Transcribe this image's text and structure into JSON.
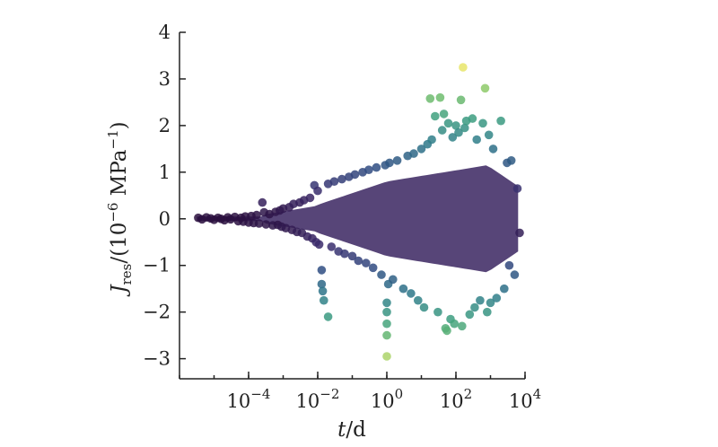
{
  "chart_data": {
    "type": "scatter",
    "title": "",
    "xlabel": {
      "italic": "t",
      "rest": "/d"
    },
    "ylabel": {
      "italic": "J",
      "sub": "res",
      "rest_a": "/(10",
      "sup1": "−6",
      "rest_b": " MPa",
      "sup2": "−1",
      "rest_c": ")"
    },
    "x_scale": "log",
    "xlim": [
      1e-06,
      10000
    ],
    "ylim": [
      -3.2,
      4
    ],
    "x_ticks": [
      {
        "base": "10",
        "exp": "−4",
        "value": 0.0001
      },
      {
        "base": "10",
        "exp": "−2",
        "value": 0.01
      },
      {
        "base": "10",
        "exp": "0",
        "value": 1
      },
      {
        "base": "10",
        "exp": "2",
        "value": 100
      },
      {
        "base": "10",
        "exp": "4",
        "value": 10000
      }
    ],
    "y_ticks": [
      {
        "label": "−3",
        "value": -3
      },
      {
        "label": "−2",
        "value": -2
      },
      {
        "label": "−1",
        "value": -1
      },
      {
        "label": "0",
        "value": 0
      },
      {
        "label": "1",
        "value": 1
      },
      {
        "label": "2",
        "value": 2
      },
      {
        "label": "3",
        "value": 3
      },
      {
        "label": "4",
        "value": 4
      }
    ],
    "grid": false,
    "legend": "none",
    "colormap": "viridis",
    "colormap_stops": [
      "#2a0f3e",
      "#3b2a6b",
      "#2f4d82",
      "#2e7a8a",
      "#3d9f80",
      "#7cc46a",
      "#e8e56a"
    ],
    "points": [
      [
        3.5e-06,
        0.02
      ],
      [
        4.5e-06,
        -0.01
      ],
      [
        6e-06,
        0.03
      ],
      [
        8e-06,
        0.01
      ],
      [
        1e-05,
        -0.02
      ],
      [
        1.3e-05,
        0.02
      ],
      [
        1.6e-05,
        0.0
      ],
      [
        2e-05,
        -0.03
      ],
      [
        2.5e-05,
        0.03
      ],
      [
        3e-05,
        -0.01
      ],
      [
        4e-05,
        0.04
      ],
      [
        5e-05,
        -0.05
      ],
      [
        6e-05,
        0.02
      ],
      [
        7e-05,
        -0.06
      ],
      [
        8e-05,
        0.05
      ],
      [
        0.0001,
        -0.08
      ],
      [
        0.00012,
        0.06
      ],
      [
        0.00014,
        -0.09
      ],
      [
        0.00017,
        0.08
      ],
      [
        0.0002,
        -0.1
      ],
      [
        0.00025,
        0.35
      ],
      [
        0.00028,
        0.14
      ],
      [
        0.00032,
        -0.12
      ],
      [
        0.0004,
        0.1
      ],
      [
        0.0005,
        -0.14
      ],
      [
        0.0006,
        0.15
      ],
      [
        0.0007,
        -0.13
      ],
      [
        0.0008,
        0.18
      ],
      [
        0.0009,
        -0.17
      ],
      [
        0.001,
        0.22
      ],
      [
        0.0012,
        -0.2
      ],
      [
        0.0015,
        0.25
      ],
      [
        0.0018,
        -0.24
      ],
      [
        0.002,
        0.32
      ],
      [
        0.0025,
        -0.28
      ],
      [
        0.003,
        0.35
      ],
      [
        0.0035,
        -0.3
      ],
      [
        0.004,
        0.4
      ],
      [
        0.005,
        -0.38
      ],
      [
        0.006,
        0.45
      ],
      [
        0.007,
        -0.42
      ],
      [
        0.008,
        0.72
      ],
      [
        0.009,
        -0.5
      ],
      [
        0.01,
        0.6
      ],
      [
        0.011,
        -0.55
      ],
      [
        0.013,
        -1.1
      ],
      [
        0.013,
        -1.4
      ],
      [
        0.014,
        -1.55
      ],
      [
        0.015,
        -1.75
      ],
      [
        0.02,
        -2.1
      ],
      [
        0.02,
        0.75
      ],
      [
        0.025,
        -0.6
      ],
      [
        0.03,
        0.8
      ],
      [
        0.04,
        -0.7
      ],
      [
        0.05,
        0.85
      ],
      [
        0.06,
        -0.75
      ],
      [
        0.08,
        0.9
      ],
      [
        0.1,
        -0.8
      ],
      [
        0.12,
        0.95
      ],
      [
        0.15,
        -0.9
      ],
      [
        0.2,
        1.0
      ],
      [
        0.25,
        -0.95
      ],
      [
        0.3,
        1.05
      ],
      [
        0.4,
        -1.05
      ],
      [
        0.5,
        1.1
      ],
      [
        0.7,
        -1.2
      ],
      [
        0.9,
        1.15
      ],
      [
        1.0,
        -1.8
      ],
      [
        1.0,
        -2.0
      ],
      [
        1.0,
        -2.25
      ],
      [
        1.0,
        -2.5
      ],
      [
        1.0,
        -2.95
      ],
      [
        1.1,
        -1.4
      ],
      [
        1.2,
        1.2
      ],
      [
        1.5,
        -1.3
      ],
      [
        2,
        1.25
      ],
      [
        3,
        -1.5
      ],
      [
        4,
        1.35
      ],
      [
        5,
        -1.6
      ],
      [
        6,
        1.4
      ],
      [
        8,
        -1.75
      ],
      [
        10,
        1.5
      ],
      [
        12,
        -1.9
      ],
      [
        15,
        1.6
      ],
      [
        18,
        2.58
      ],
      [
        20,
        1.7
      ],
      [
        25,
        2.2
      ],
      [
        30,
        -2.0
      ],
      [
        35,
        2.6
      ],
      [
        40,
        1.9
      ],
      [
        45,
        2.25
      ],
      [
        50,
        -2.35
      ],
      [
        55,
        -2.4
      ],
      [
        60,
        2.05
      ],
      [
        70,
        -2.15
      ],
      [
        80,
        1.75
      ],
      [
        90,
        -2.25
      ],
      [
        100,
        2.0
      ],
      [
        120,
        1.85
      ],
      [
        140,
        2.55
      ],
      [
        150,
        -2.3
      ],
      [
        160,
        3.25
      ],
      [
        180,
        1.95
      ],
      [
        200,
        2.1
      ],
      [
        250,
        -2.05
      ],
      [
        300,
        2.15
      ],
      [
        350,
        -1.9
      ],
      [
        400,
        1.7
      ],
      [
        500,
        -1.75
      ],
      [
        600,
        2.05
      ],
      [
        700,
        2.8
      ],
      [
        800,
        -2.0
      ],
      [
        900,
        1.8
      ],
      [
        1000,
        -1.8
      ],
      [
        1200,
        1.5
      ],
      [
        1500,
        -1.7
      ],
      [
        2000,
        2.1
      ],
      [
        2500,
        -1.5
      ],
      [
        3000,
        1.2
      ],
      [
        3500,
        -1.0
      ],
      [
        4000,
        1.25
      ],
      [
        5000,
        -1.2
      ],
      [
        6000,
        0.65
      ],
      [
        7000,
        -0.3
      ]
    ]
  }
}
